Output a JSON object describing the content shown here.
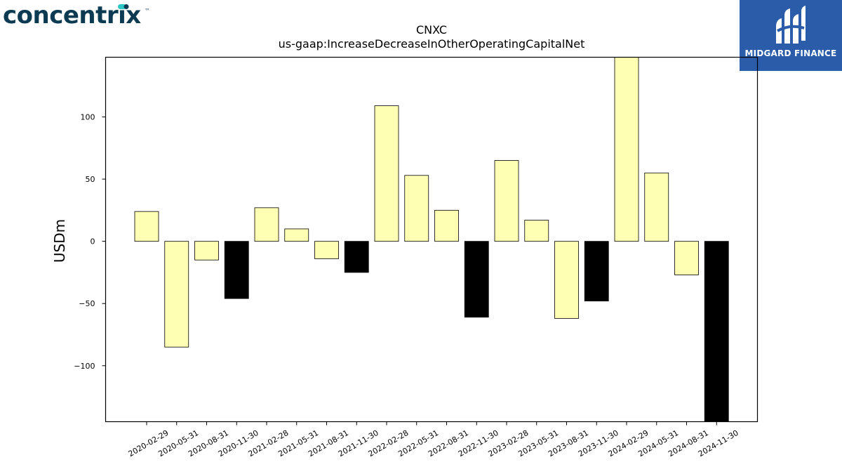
{
  "logos": {
    "left_text": "concentrix",
    "left_tm": "™",
    "right_text": "MIDGARD FINANCE"
  },
  "colors": {
    "positive_bar": "#ffffb3",
    "negative_bar_q4": "#000000",
    "logo_left_text": "#0b3a52",
    "logo_left_dot": "#2cc6c9",
    "logo_right_bg": "#2a5caa"
  },
  "chart_data": {
    "type": "bar",
    "title": "CNXC",
    "subtitle": "us-gaap:IncreaseDecreaseInOtherOperatingCapitalNet",
    "xlabel": "",
    "ylabel": "USDm",
    "ylim": [
      -145,
      148
    ],
    "yticks": [
      -100,
      -50,
      0,
      50,
      100
    ],
    "grid": false,
    "categories": [
      "2020-02-29",
      "2020-05-31",
      "2020-08-31",
      "2020-11-30",
      "2021-02-28",
      "2021-05-31",
      "2021-08-31",
      "2021-11-30",
      "2022-02-28",
      "2022-05-31",
      "2022-08-31",
      "2022-11-30",
      "2023-02-28",
      "2023-05-31",
      "2023-08-31",
      "2023-11-30",
      "2024-02-29",
      "2024-05-31",
      "2024-08-31",
      "2024-11-30"
    ],
    "values": [
      24,
      -85,
      -15,
      -46,
      27,
      10,
      -14,
      -25,
      109,
      53,
      25,
      -61,
      65,
      17,
      -62,
      -48,
      148,
      55,
      -27,
      -145
    ],
    "fill_colors": [
      "#ffffb3",
      "#ffffb3",
      "#ffffb3",
      "#000000",
      "#ffffb3",
      "#ffffb3",
      "#ffffb3",
      "#000000",
      "#ffffb3",
      "#ffffb3",
      "#ffffb3",
      "#000000",
      "#ffffb3",
      "#ffffb3",
      "#ffffb3",
      "#000000",
      "#ffffb3",
      "#ffffb3",
      "#ffffb3",
      "#000000"
    ]
  }
}
